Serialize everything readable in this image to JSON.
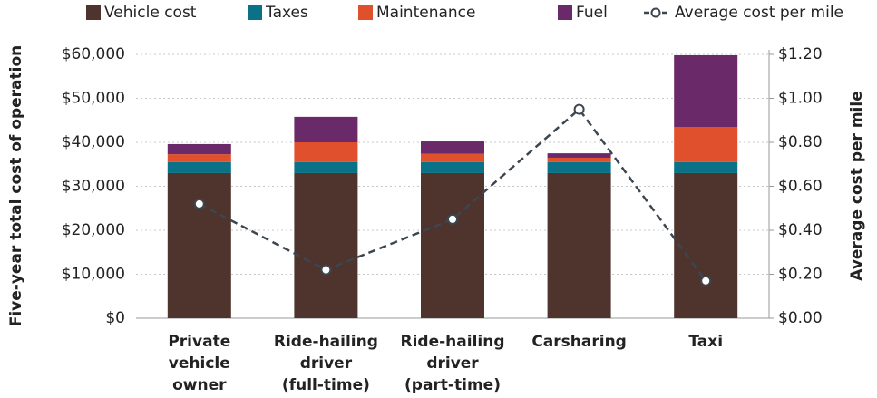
{
  "chart_data": {
    "type": "bar",
    "categories": [
      [
        "Private",
        "vehicle",
        "owner"
      ],
      [
        "Ride-hailing",
        "driver",
        "(full-time)"
      ],
      [
        "Ride-hailing",
        "driver",
        "(part-time)"
      ],
      [
        "Carsharing"
      ],
      [
        "Taxi"
      ]
    ],
    "series": [
      {
        "name": "Vehicle cost",
        "color": "#4e342c",
        "values": [
          33000,
          33000,
          33000,
          33000,
          33000
        ]
      },
      {
        "name": "Taxes",
        "color": "#0a7186",
        "values": [
          2500,
          2500,
          2500,
          2500,
          2500
        ]
      },
      {
        "name": "Maintenance",
        "color": "#e0502c",
        "values": [
          1800,
          4500,
          1900,
          1000,
          8000
        ]
      },
      {
        "name": "Fuel",
        "color": "#6a2a6a",
        "values": [
          2300,
          5800,
          2800,
          1000,
          16300
        ]
      },
      {
        "name": "Average cost per mile",
        "type": "line",
        "axis": "y2",
        "color": "#3c4650",
        "values": [
          0.52,
          0.22,
          0.45,
          0.95,
          0.17
        ]
      }
    ],
    "ylabel": "Five-year total cost of operation",
    "y2label": "Average cost per mile",
    "ylim": [
      0,
      60000
    ],
    "yticks": [
      {
        "value": 0,
        "label": "$0"
      },
      {
        "value": 10000,
        "label": "$10,000"
      },
      {
        "value": 20000,
        "label": "$20,000"
      },
      {
        "value": 30000,
        "label": "$30,000"
      },
      {
        "value": 40000,
        "label": "$40,000"
      },
      {
        "value": 50000,
        "label": "$50,000"
      },
      {
        "value": 60000,
        "label": "$60,000"
      }
    ],
    "y2lim": [
      0,
      1.2
    ],
    "y2ticks": [
      {
        "value": 0,
        "label": "$0.00"
      },
      {
        "value": 0.2,
        "label": "$0.20"
      },
      {
        "value": 0.4,
        "label": "$0.40"
      },
      {
        "value": 0.6,
        "label": "$0.60"
      },
      {
        "value": 0.8,
        "label": "$0.80"
      },
      {
        "value": 1.0,
        "label": "$1.00"
      },
      {
        "value": 1.2,
        "label": "$1.20"
      }
    ],
    "grid": true,
    "legend": "top"
  }
}
